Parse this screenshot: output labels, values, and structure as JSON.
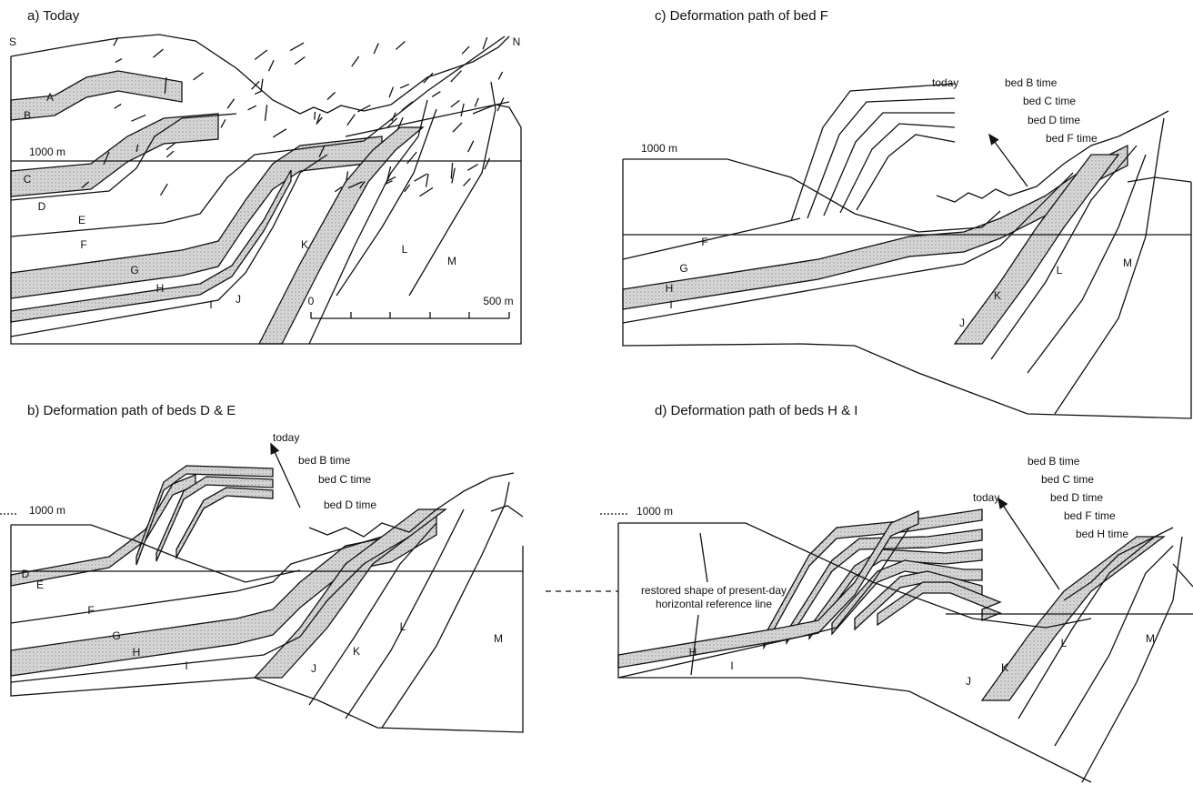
{
  "panels": [
    {
      "title": "a) Today",
      "south": "S",
      "north": "N",
      "elevation": "1000 m",
      "beds": [
        "A",
        "B",
        "C",
        "D",
        "E",
        "F",
        "G",
        "H",
        "I",
        "J",
        "K",
        "L",
        "M"
      ],
      "scale": [
        "0",
        "500 m"
      ]
    },
    {
      "title": "b) Deformation path of beds D & E",
      "elevation": "1000 m",
      "beds": [
        "D",
        "E",
        "F",
        "G",
        "H",
        "I",
        "J",
        "K",
        "L",
        "M"
      ],
      "times": [
        "today",
        "bed B time",
        "bed C time",
        "bed D time"
      ]
    },
    {
      "title": "c) Deformation path of bed F",
      "elevation": "1000 m",
      "beds": [
        "F",
        "G",
        "H",
        "I",
        "J",
        "K",
        "L",
        "M"
      ],
      "times": [
        "today",
        "bed B time",
        "bed C time",
        "bed D time",
        "bed F time"
      ]
    },
    {
      "title": "d) Deformation path of beds H & I",
      "elevation": "1000 m",
      "beds": [
        "H",
        "I",
        "J",
        "K",
        "L",
        "M"
      ],
      "times": [
        "today",
        "bed B time",
        "bed C time",
        "bed D time",
        "bed F time",
        "bed H time"
      ],
      "reference": [
        "restored shape of present-day",
        "horizontal reference line"
      ]
    }
  ]
}
